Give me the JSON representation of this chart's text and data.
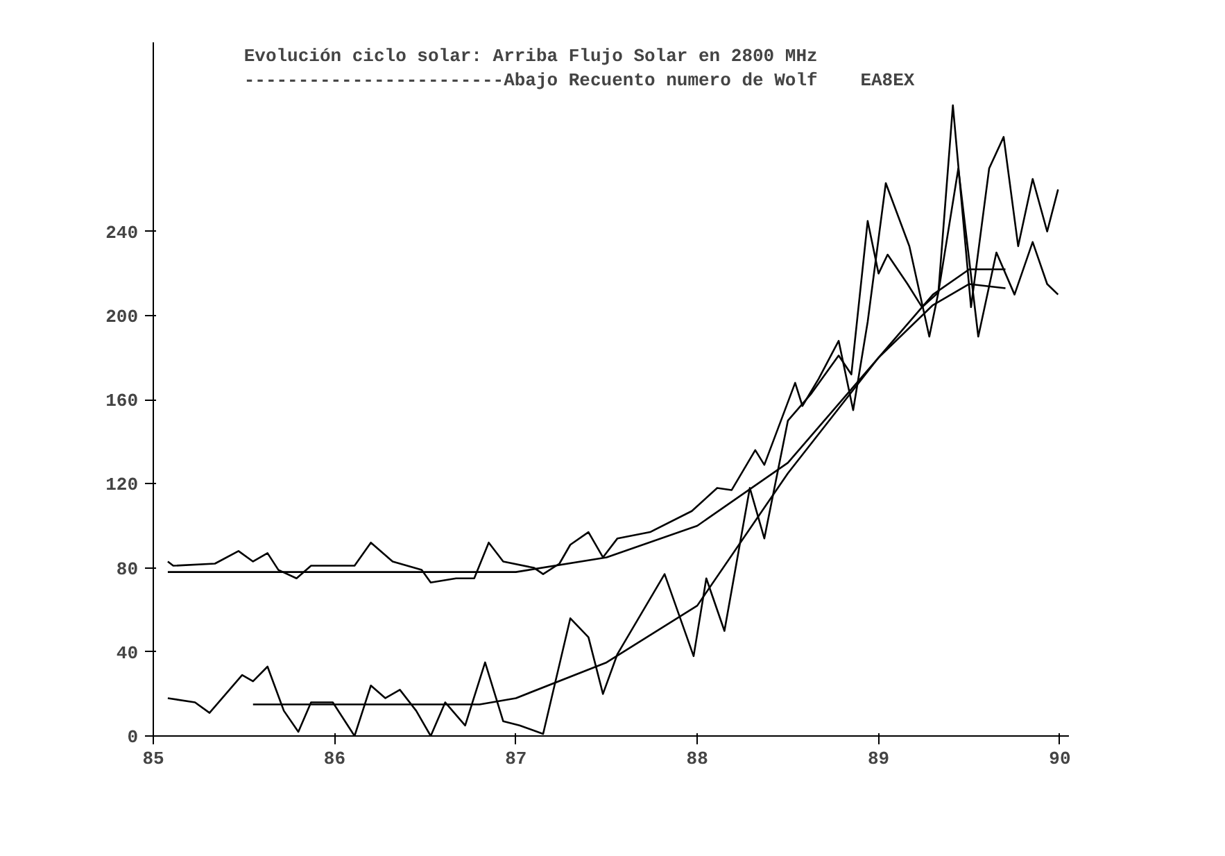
{
  "chart_data": {
    "type": "line",
    "title": "Evolución ciclo solar: Arriba Flujo Solar en 2800 MHz",
    "subtitle": "------------------------Abajo Recuento numero de Wolf",
    "annotations": [
      "EA8EX"
    ],
    "xlim": [
      85,
      90.05
    ],
    "xticks": [
      85,
      86,
      87,
      88,
      89,
      90
    ],
    "ylim": [
      0,
      330
    ],
    "yticks": [
      0,
      40,
      80,
      120,
      160,
      200,
      240
    ],
    "grid": false,
    "marker": "none",
    "line_style": "solid",
    "series": [
      {
        "color": "#000000",
        "x": [
          85.08,
          85.11,
          85.34,
          85.47,
          85.55,
          85.63,
          85.69,
          85.79,
          85.87,
          86.11,
          86.2,
          86.32,
          86.48,
          86.53,
          86.67,
          86.77,
          86.85,
          86.93,
          87.1,
          87.15,
          87.24,
          87.3,
          87.4,
          87.48,
          87.56,
          87.74,
          87.97,
          88.11,
          88.19,
          88.32,
          88.37,
          88.54,
          88.58,
          88.67,
          88.78,
          88.86,
          88.94,
          89.04,
          89.17,
          89.28,
          89.33,
          89.41,
          89.51,
          89.61,
          89.69,
          89.77,
          89.85,
          89.93,
          89.99
        ],
        "values": [
          83,
          81,
          82,
          88,
          83,
          87,
          79,
          75,
          81,
          81,
          92,
          83,
          79,
          73,
          75,
          75,
          92,
          83,
          80,
          77,
          82,
          91,
          97,
          85,
          94,
          97,
          107,
          118,
          117,
          136,
          129,
          168,
          157,
          170,
          188,
          155,
          197,
          263,
          233,
          190,
          211,
          300,
          204,
          270,
          285,
          233,
          265,
          240,
          260
        ]
      },
      {
        "color": "#000000",
        "x": [
          85.08,
          85.5,
          86.0,
          86.5,
          87.0,
          87.5,
          88.0,
          88.5,
          89.0,
          89.3,
          89.5,
          89.7
        ],
        "values": [
          78,
          78,
          78,
          78,
          78,
          85,
          100,
          130,
          180,
          210,
          222,
          222
        ]
      },
      {
        "color": "#000000",
        "x": [
          85.08,
          85.23,
          85.31,
          85.49,
          85.55,
          85.63,
          85.72,
          85.8,
          85.87,
          85.99,
          86.11,
          86.2,
          86.28,
          86.36,
          86.45,
          86.53,
          86.61,
          86.72,
          86.83,
          86.93,
          87.02,
          87.15,
          87.3,
          87.4,
          87.48,
          87.56,
          87.82,
          87.98,
          88.05,
          88.15,
          88.29,
          88.37,
          88.5,
          88.63,
          88.78,
          88.85,
          88.94,
          89.0,
          89.05,
          89.16,
          89.24,
          89.33,
          89.44,
          89.55,
          89.65,
          89.75,
          89.85,
          89.93,
          89.99
        ],
        "values": [
          18,
          16,
          11,
          29,
          26,
          33,
          12,
          2,
          16,
          16,
          0,
          24,
          18,
          22,
          12,
          0,
          16,
          5,
          35,
          7,
          5,
          1,
          56,
          47,
          20,
          39,
          77,
          38,
          75,
          50,
          118,
          94,
          150,
          163,
          181,
          172,
          245,
          220,
          229,
          215,
          204,
          211,
          270,
          190,
          230,
          210,
          235,
          215,
          210
        ]
      },
      {
        "color": "#000000",
        "x": [
          85.55,
          86.0,
          86.5,
          86.8,
          87.0,
          87.5,
          88.0,
          88.5,
          89.0,
          89.3,
          89.5,
          89.7
        ],
        "values": [
          15,
          15,
          15,
          15,
          18,
          35,
          62,
          125,
          180,
          205,
          215,
          213
        ]
      }
    ]
  }
}
